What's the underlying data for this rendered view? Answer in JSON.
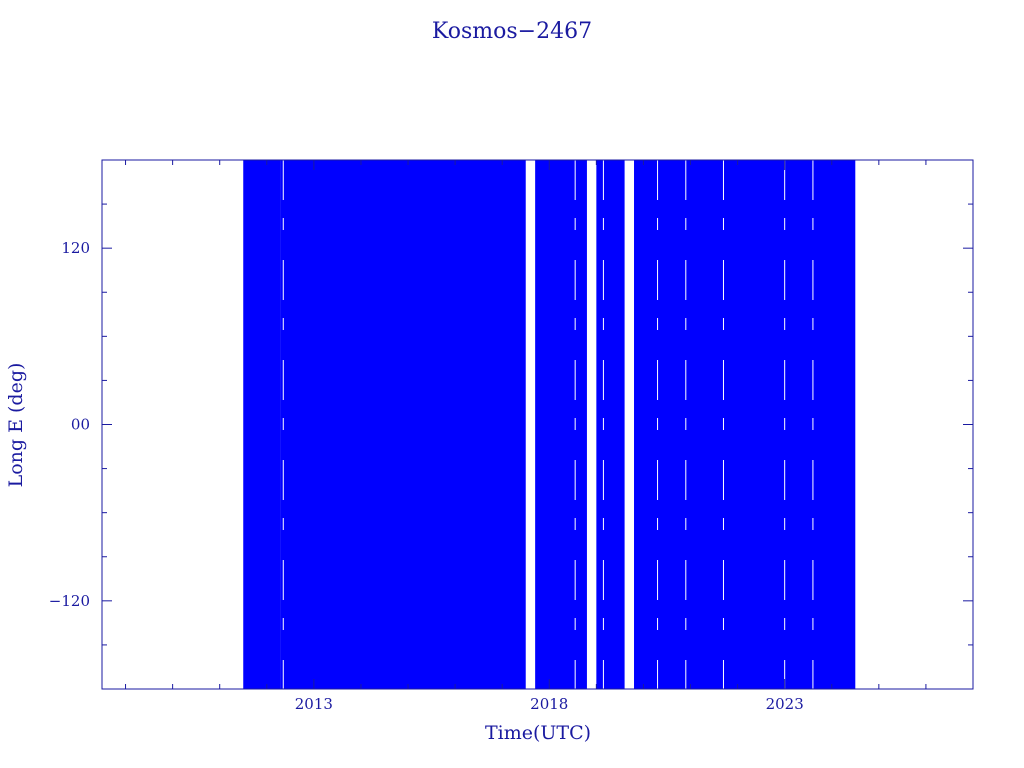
{
  "chart_data": {
    "type": "scatter",
    "title": "Kosmos−2467",
    "xlabel": "Time(UTC)",
    "ylabel": "Long E (deg)",
    "xlim": [
      2008.5,
      2027.0
    ],
    "ylim": [
      -180,
      180
    ],
    "x_ticks": [
      2013,
      2018,
      2023
    ],
    "x_tick_labels": [
      "2013",
      "2018",
      "2023"
    ],
    "y_ticks": [
      -120,
      0,
      120
    ],
    "y_tick_labels": [
      "−120",
      "00",
      "120"
    ],
    "grid": false,
    "legend": "none",
    "colors": {
      "frame": "#1a1aa0",
      "data": "#0000ff"
    },
    "series": [
      {
        "description_of_fill": "longitude drift coverage (dense wrap-around)",
        "solid_ranges": [
          [
            2011.5,
            2012.3
          ],
          [
            2012.3,
            2017.5
          ],
          [
            2017.7,
            2018.8
          ],
          [
            2019.0,
            2019.6
          ],
          [
            2019.8,
            2024.5
          ]
        ],
        "gaps": [
          [
            2017.5,
            2017.7
          ],
          [
            2018.8,
            2019.0
          ],
          [
            2019.6,
            2019.8
          ]
        ],
        "x_start": 2011.5,
        "x_end": 2024.5
      }
    ]
  }
}
